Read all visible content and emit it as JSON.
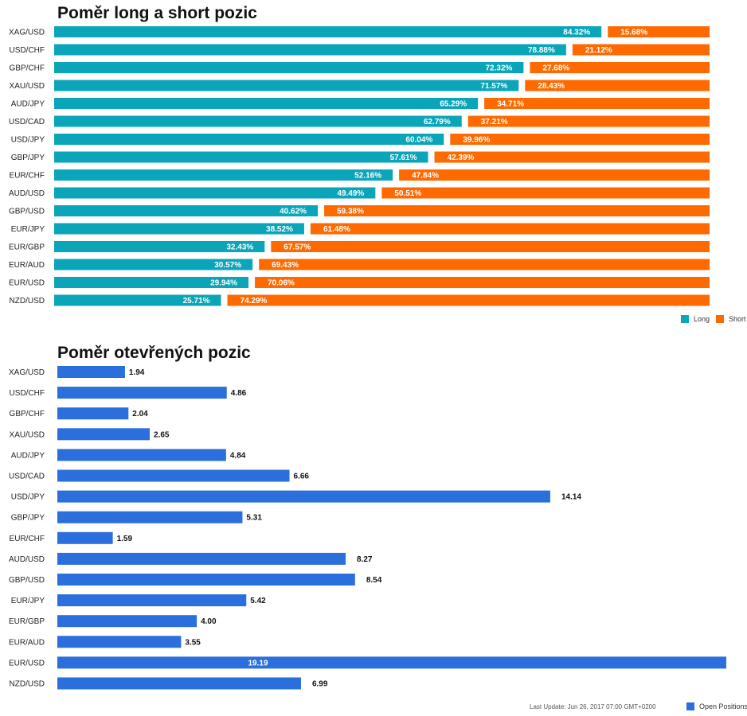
{
  "chart_data": [
    {
      "type": "bar",
      "stacked": true,
      "orientation": "horizontal",
      "title": "Poměr long a short pozic",
      "categories": [
        "XAG/USD",
        "USD/CHF",
        "GBP/CHF",
        "XAU/USD",
        "AUD/JPY",
        "USD/CAD",
        "USD/JPY",
        "GBP/JPY",
        "EUR/CHF",
        "AUD/USD",
        "GBP/USD",
        "EUR/JPY",
        "EUR/GBP",
        "EUR/AUD",
        "EUR/USD",
        "NZD/USD"
      ],
      "series": [
        {
          "name": "Long",
          "color": "#0ba5b9",
          "values": [
            84.32,
            78.88,
            72.32,
            71.57,
            65.29,
            62.79,
            60.04,
            57.61,
            52.16,
            49.49,
            40.62,
            38.52,
            32.43,
            30.57,
            29.94,
            25.71
          ]
        },
        {
          "name": "Short",
          "color": "#ff6a00",
          "values": [
            15.68,
            21.12,
            27.68,
            28.43,
            34.71,
            37.21,
            39.96,
            42.39,
            47.84,
            50.51,
            59.38,
            61.48,
            67.57,
            69.43,
            70.06,
            74.29
          ]
        }
      ],
      "value_suffix": "%",
      "xlim": [
        0,
        100
      ],
      "grid": false,
      "legend_position": "bottom-right"
    },
    {
      "type": "bar",
      "orientation": "horizontal",
      "title": "Poměr otevřených pozic",
      "categories": [
        "XAG/USD",
        "USD/CHF",
        "GBP/CHF",
        "XAU/USD",
        "AUD/JPY",
        "USD/CAD",
        "USD/JPY",
        "GBP/JPY",
        "EUR/CHF",
        "AUD/USD",
        "GBP/USD",
        "EUR/JPY",
        "EUR/GBP",
        "EUR/AUD",
        "EUR/USD",
        "NZD/USD"
      ],
      "series": [
        {
          "name": "Open Positions",
          "color": "#2a6fdb",
          "values": [
            1.94,
            4.86,
            2.04,
            2.65,
            4.84,
            6.66,
            14.14,
            5.31,
            1.59,
            8.27,
            8.54,
            5.42,
            4.0,
            3.55,
            19.19,
            6.99
          ]
        }
      ],
      "xlim": [
        0,
        19.19
      ],
      "grid": false,
      "legend_position": "bottom-right"
    }
  ],
  "footer": {
    "last_update": "Last Update: Jun 26, 2017 07:00 GMT+0200"
  }
}
